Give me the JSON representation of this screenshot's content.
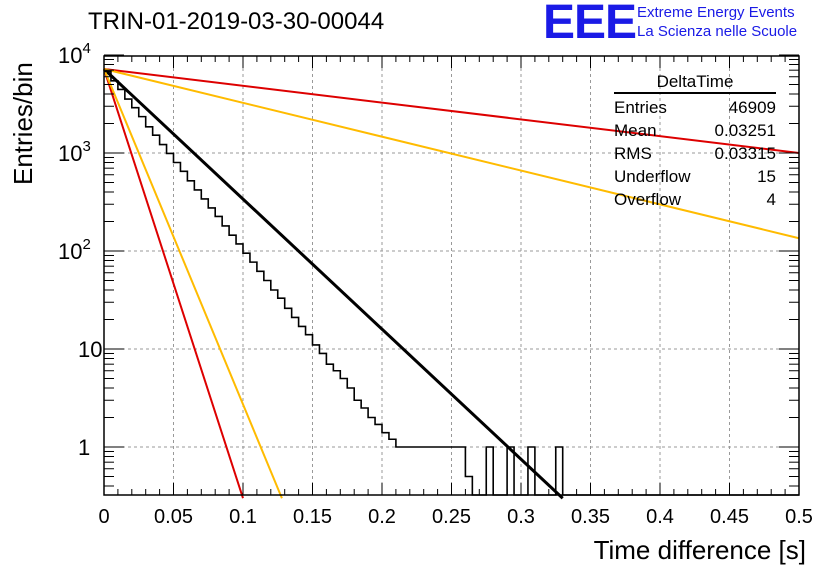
{
  "header": {
    "title": "TRIN-01-2019-03-30-00044",
    "logo": "EEE",
    "org_line1": "Extreme Energy Events",
    "org_line2": "La Scienza nelle Scuole"
  },
  "stats_box": {
    "title": "DeltaTime",
    "rows": [
      {
        "label": "Entries",
        "value": "46909"
      },
      {
        "label": "Mean",
        "value": "0.03251"
      },
      {
        "label": "RMS",
        "value": "0.03315"
      },
      {
        "label": "Underflow",
        "value": "15"
      },
      {
        "label": "Overflow",
        "value": "4"
      }
    ]
  },
  "colors": {
    "histogram": "#000000",
    "fit": "#000000",
    "red": "#dd0000",
    "orange": "#ffbb00",
    "grid": "#999999"
  },
  "chart_data": {
    "type": "line",
    "title": "TRIN-01-2019-03-30-00044",
    "xlabel": "Time difference [s]",
    "ylabel": "Entries/bin",
    "xlim": [
      0,
      0.5
    ],
    "ylim": [
      0.3,
      12000
    ],
    "y_scale": "log",
    "grid": true,
    "x_ticks": [
      "0",
      "0.05",
      "0.1",
      "0.15",
      "0.2",
      "0.25",
      "0.3",
      "0.35",
      "0.4",
      "0.45",
      "0.5"
    ],
    "y_ticks": [
      {
        "value": 10000,
        "base": "10",
        "exp": "4"
      },
      {
        "value": 1000,
        "base": "10",
        "exp": "3"
      },
      {
        "value": 100,
        "base": "10",
        "exp": "2"
      },
      {
        "value": 10,
        "base": "10",
        "exp": ""
      },
      {
        "value": 1,
        "base": "1",
        "exp": ""
      }
    ],
    "histogram": {
      "bin_width": 0.005,
      "values": [
        6800,
        5450,
        4450,
        3550,
        2900,
        2350,
        1850,
        1520,
        1220,
        990,
        800,
        650,
        520,
        420,
        340,
        275,
        225,
        180,
        145,
        118,
        95,
        77,
        62,
        50,
        40,
        33,
        26,
        21,
        17,
        14,
        11,
        9,
        7,
        6,
        5,
        4,
        3,
        2.5,
        2,
        1.7,
        1.4,
        1.2,
        1,
        1,
        1,
        1,
        1,
        1,
        1,
        1,
        1,
        1,
        0.5,
        0.3,
        0.3,
        1,
        0.3,
        0.3,
        1,
        0.3,
        0.3,
        1,
        0.3,
        0.3,
        0.3,
        1,
        0.3,
        0.3,
        0.3,
        0.3,
        0.3,
        0.3,
        0.3,
        0.3,
        0.3,
        0.3,
        0.3,
        0.3,
        0.3,
        0.3,
        0.3,
        0.3,
        0.3,
        0.3,
        0.3,
        0.3,
        0.3,
        0.3,
        0.3,
        0.3,
        0.3,
        0.3,
        0.3,
        0.3,
        0.3,
        0.3,
        0.3,
        0.3,
        0.3,
        0.3
      ]
    },
    "series": [
      {
        "color": "#000000",
        "x": [
          0,
          0.33
        ],
        "y": [
          7200,
          0.3
        ]
      },
      {
        "color": "#dd0000",
        "x": [
          0,
          0.5
        ],
        "y": [
          7200,
          1000
        ]
      },
      {
        "color": "#ffbb00",
        "x": [
          0,
          0.5
        ],
        "y": [
          7200,
          135
        ]
      },
      {
        "color": "#dd0000",
        "x": [
          0,
          0.1
        ],
        "y": [
          7200,
          0.3
        ]
      },
      {
        "color": "#ffbb00",
        "x": [
          0,
          0.128
        ],
        "y": [
          7200,
          0.3
        ]
      }
    ]
  }
}
